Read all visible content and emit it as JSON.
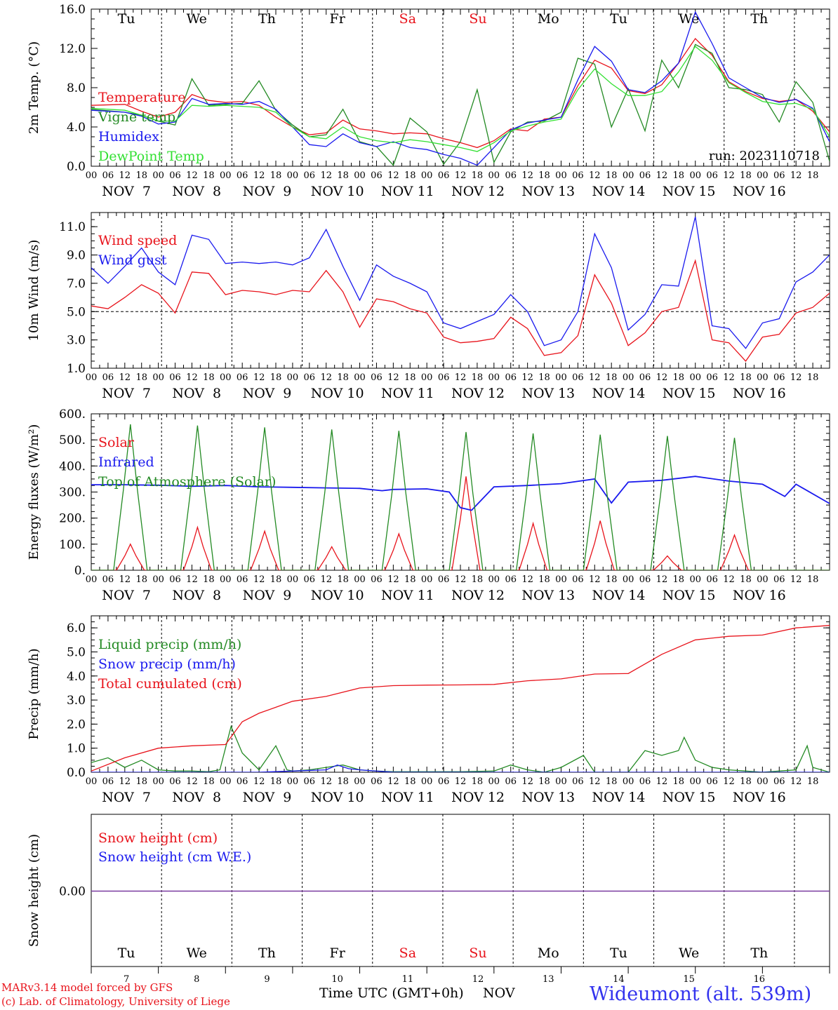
{
  "colors": {
    "red": "#e8131b",
    "green": "#238a23",
    "blue": "#1a1aee",
    "lightgreen": "#33e033",
    "purple": "#7a3aa0",
    "label_blue": "#3333ee"
  },
  "weekdays": [
    {
      "label": "Tu",
      "weekend": false
    },
    {
      "label": "We",
      "weekend": false
    },
    {
      "label": "Th",
      "weekend": false
    },
    {
      "label": "Fr",
      "weekend": false
    },
    {
      "label": "Sa",
      "weekend": true
    },
    {
      "label": "Su",
      "weekend": true
    },
    {
      "label": "Mo",
      "weekend": false
    },
    {
      "label": "Tu",
      "weekend": false
    },
    {
      "label": "We",
      "weekend": false
    },
    {
      "label": "Th",
      "weekend": false
    }
  ],
  "date_labels": [
    "NOV  7",
    "NOV  8",
    "NOV  9",
    "NOV 10",
    "NOV 11",
    "NOV 12",
    "NOV 13",
    "NOV 14",
    "NOV 15",
    "NOV 16"
  ],
  "hour_labels": [
    "00",
    "06",
    "12",
    "18"
  ],
  "bottom_day_numbers": [
    "7",
    "8",
    "9",
    "10",
    "11",
    "12",
    "13",
    "14",
    "15",
    "16"
  ],
  "footer": {
    "model_line": "MARv3.14 model forced by GFS",
    "lab_line": "(c) Lab. of Climatology, University of Liege",
    "time_axis": "Time UTC (GMT+0h)",
    "month": "NOV",
    "station": "Wideumont (alt. 539m)"
  },
  "chart_data": [
    {
      "type": "line",
      "ylabel": "2m Temp. (°C)",
      "ylim": [
        0,
        16
      ],
      "yticks": [
        "0.0",
        "4.0",
        "8.0",
        "12.0",
        "16.0"
      ],
      "annotation": "run: 2023110718",
      "x_unit": "hours since NOV 7 00 UTC",
      "series": [
        {
          "name": "Temperature",
          "color": "red",
          "x": [
            0,
            12,
            18,
            24,
            30,
            36,
            42,
            48,
            54,
            60,
            66,
            72,
            78,
            84,
            90,
            96,
            102,
            108,
            114,
            120,
            126,
            132,
            138,
            144,
            150,
            156,
            162,
            168,
            174,
            180,
            186,
            192,
            198,
            204,
            210,
            216,
            222,
            228,
            234,
            240,
            246,
            252,
            258,
            264
          ],
          "y": [
            6.2,
            6.3,
            5.6,
            5.0,
            5.5,
            7.3,
            6.7,
            6.5,
            6.6,
            6.2,
            5.0,
            4.0,
            3.2,
            3.4,
            4.7,
            3.8,
            3.6,
            3.3,
            3.4,
            3.3,
            2.8,
            2.4,
            1.9,
            2.6,
            3.8,
            3.6,
            4.8,
            5.0,
            8.2,
            10.8,
            10.0,
            7.7,
            7.4,
            8.3,
            10.5,
            13.0,
            11.3,
            8.6,
            7.6,
            6.9,
            6.6,
            6.8,
            5.6,
            3.5
          ]
        },
        {
          "name": "Vigne temp",
          "color": "green",
          "x": [
            0,
            12,
            18,
            24,
            30,
            36,
            42,
            48,
            54,
            60,
            66,
            72,
            78,
            84,
            90,
            96,
            102,
            108,
            114,
            120,
            126,
            132,
            138,
            144,
            150,
            156,
            162,
            168,
            174,
            180,
            186,
            192,
            198,
            204,
            210,
            216,
            222,
            228,
            234,
            240,
            246,
            252,
            258,
            264
          ],
          "y": [
            5.8,
            5.5,
            5.2,
            4.6,
            4.2,
            8.9,
            6.2,
            6.3,
            6.4,
            8.7,
            5.7,
            4.2,
            3.0,
            3.2,
            5.8,
            2.5,
            2.0,
            0.1,
            4.9,
            3.5,
            0.2,
            2.5,
            7.8,
            0.4,
            3.5,
            4.5,
            4.6,
            5.5,
            11.0,
            10.4,
            4.0,
            7.9,
            3.6,
            10.8,
            8.0,
            12.4,
            11.5,
            8.0,
            7.8,
            7.3,
            4.5,
            8.6,
            6.5,
            0.5
          ]
        },
        {
          "name": "Humidex",
          "color": "blue",
          "x": [
            0,
            12,
            18,
            24,
            30,
            36,
            42,
            48,
            54,
            60,
            66,
            72,
            78,
            84,
            90,
            96,
            102,
            108,
            114,
            120,
            126,
            132,
            138,
            144,
            150,
            156,
            162,
            168,
            174,
            180,
            186,
            192,
            198,
            204,
            210,
            216,
            222,
            228,
            234,
            240,
            246,
            252,
            258,
            264
          ],
          "y": [
            5.7,
            5.5,
            5.1,
            4.3,
            4.5,
            6.9,
            6.3,
            6.4,
            6.3,
            6.6,
            5.8,
            4.0,
            2.2,
            2.0,
            3.3,
            2.4,
            2.0,
            2.5,
            1.9,
            1.7,
            1.2,
            0.8,
            0.1,
            1.9,
            3.7,
            4.4,
            4.7,
            5.0,
            8.8,
            12.2,
            10.7,
            7.8,
            7.5,
            8.7,
            10.5,
            15.7,
            12.5,
            9.0,
            8.0,
            7.0,
            6.5,
            6.8,
            5.9,
            2.5
          ]
        },
        {
          "name": "DewPoint Temp",
          "color": "lightgreen",
          "x": [
            0,
            12,
            18,
            24,
            30,
            36,
            42,
            48,
            54,
            60,
            66,
            72,
            78,
            84,
            90,
            96,
            102,
            108,
            114,
            120,
            126,
            132,
            138,
            144,
            150,
            156,
            162,
            168,
            174,
            180,
            186,
            192,
            198,
            204,
            210,
            216,
            222,
            228,
            234,
            240,
            246,
            252,
            258,
            264
          ],
          "y": [
            5.9,
            5.7,
            5.2,
            4.6,
            4.6,
            6.2,
            6.1,
            6.2,
            6.1,
            6.0,
            5.5,
            4.0,
            3.0,
            2.8,
            4.0,
            3.0,
            2.6,
            2.4,
            2.7,
            2.5,
            2.2,
            1.9,
            1.5,
            2.4,
            3.6,
            4.1,
            4.5,
            4.8,
            7.8,
            9.9,
            8.4,
            7.2,
            7.2,
            7.6,
            9.6,
            12.2,
            10.8,
            8.5,
            7.5,
            6.6,
            6.3,
            6.4,
            5.8,
            3.0
          ]
        }
      ]
    },
    {
      "type": "line",
      "ylabel": "10m Wind (m/s)",
      "ylim": [
        1,
        12
      ],
      "yticks": [
        "1.0",
        "3.0",
        "5.0",
        "7.0",
        "9.0",
        "11.0"
      ],
      "reference_line": 5,
      "x_unit": "hours since NOV 7 00 UTC",
      "series": [
        {
          "name": "Wind speed",
          "color": "red",
          "x": [
            0,
            6,
            12,
            18,
            24,
            30,
            36,
            42,
            48,
            54,
            60,
            66,
            72,
            78,
            84,
            90,
            96,
            102,
            108,
            114,
            120,
            126,
            132,
            138,
            144,
            150,
            156,
            162,
            168,
            174,
            180,
            186,
            192,
            198,
            204,
            210,
            216,
            222,
            228,
            234,
            240,
            246,
            252,
            258,
            264
          ],
          "y": [
            5.4,
            5.2,
            6.0,
            6.9,
            6.3,
            4.9,
            7.8,
            7.7,
            6.2,
            6.5,
            6.4,
            6.2,
            6.5,
            6.4,
            7.9,
            6.4,
            3.9,
            5.9,
            5.7,
            5.2,
            4.9,
            3.2,
            2.8,
            2.9,
            3.1,
            4.6,
            3.8,
            1.9,
            2.1,
            3.3,
            7.6,
            5.6,
            2.6,
            3.5,
            5.0,
            5.3,
            8.6,
            3.0,
            2.8,
            1.5,
            3.2,
            3.4,
            4.9,
            5.3,
            6.3
          ]
        },
        {
          "name": "Wind gust",
          "color": "blue",
          "x": [
            0,
            6,
            12,
            18,
            24,
            30,
            36,
            42,
            48,
            54,
            60,
            66,
            72,
            78,
            84,
            90,
            96,
            102,
            108,
            114,
            120,
            126,
            132,
            138,
            144,
            150,
            156,
            162,
            168,
            174,
            180,
            186,
            192,
            198,
            204,
            210,
            216,
            222,
            228,
            234,
            240,
            246,
            252,
            258,
            264
          ],
          "y": [
            8.1,
            7.0,
            8.2,
            9.5,
            7.8,
            6.9,
            10.4,
            10.1,
            8.4,
            8.5,
            8.4,
            8.5,
            8.3,
            8.8,
            10.8,
            8.2,
            5.8,
            8.3,
            7.5,
            7.0,
            6.4,
            4.2,
            3.8,
            4.3,
            4.8,
            6.2,
            5.0,
            2.6,
            3.0,
            5.0,
            10.5,
            8.1,
            3.7,
            4.8,
            6.9,
            6.8,
            11.7,
            4.0,
            3.8,
            2.4,
            4.2,
            4.5,
            7.1,
            7.8,
            9.0
          ]
        }
      ]
    },
    {
      "type": "line",
      "ylabel": "Energy fluxes (W/m²)",
      "ylim": [
        0,
        600
      ],
      "yticks": [
        "0.",
        "100.",
        "200.",
        "300.",
        "400.",
        "500.",
        "600."
      ],
      "x_unit": "hours since NOV 7 00 UTC",
      "series": [
        {
          "name": "Solar",
          "color": "red",
          "peaks": [
            {
              "hour": 14,
              "value": 100
            },
            {
              "hour": 38,
              "value": 165
            },
            {
              "hour": 62,
              "value": 150
            },
            {
              "hour": 86,
              "value": 90
            },
            {
              "hour": 110,
              "value": 140
            },
            {
              "hour": 134,
              "value": 360
            },
            {
              "hour": 158,
              "value": 180
            },
            {
              "hour": 182,
              "value": 190
            },
            {
              "hour": 206,
              "value": 55
            },
            {
              "hour": 230,
              "value": 135
            }
          ]
        },
        {
          "name": "Infrared",
          "color": "blue",
          "x": [
            0,
            12,
            24,
            36,
            48,
            60,
            72,
            84,
            96,
            104,
            108,
            120,
            128,
            132,
            136,
            144,
            156,
            168,
            180,
            186,
            192,
            204,
            216,
            228,
            240,
            248,
            252,
            264
          ],
          "y": [
            328,
            328,
            326,
            322,
            325,
            320,
            318,
            316,
            314,
            305,
            310,
            312,
            300,
            240,
            230,
            320,
            325,
            332,
            350,
            258,
            338,
            345,
            360,
            342,
            330,
            283,
            330,
            256
          ]
        },
        {
          "name": "Top of Atmosphere (Solar)",
          "color": "green",
          "peaks": [
            {
              "hour": 14,
              "value": 560
            },
            {
              "hour": 38,
              "value": 555
            },
            {
              "hour": 62,
              "value": 548
            },
            {
              "hour": 86,
              "value": 540
            },
            {
              "hour": 110,
              "value": 535
            },
            {
              "hour": 134,
              "value": 530
            },
            {
              "hour": 158,
              "value": 525
            },
            {
              "hour": 182,
              "value": 520
            },
            {
              "hour": 206,
              "value": 515
            },
            {
              "hour": 230,
              "value": 508
            }
          ]
        }
      ]
    },
    {
      "type": "line",
      "ylabel": "Precip (mm/h)",
      "ylim": [
        0,
        6.5
      ],
      "yticks": [
        "0.0",
        "1.0",
        "2.0",
        "3.0",
        "4.0",
        "5.0",
        "6.0"
      ],
      "x_unit": "hours since NOV 7 00 UTC",
      "series": [
        {
          "name": "Liquid precip (mm/h)",
          "color": "green",
          "x": [
            0,
            6,
            12,
            18,
            24,
            30,
            36,
            42,
            46,
            50,
            54,
            60,
            66,
            70,
            72,
            78,
            84,
            90,
            96,
            102,
            108,
            120,
            132,
            144,
            150,
            156,
            162,
            168,
            176,
            180,
            192,
            198,
            204,
            210,
            212,
            216,
            222,
            228,
            234,
            240,
            246,
            252,
            256,
            258,
            264
          ],
          "y": [
            0.4,
            0.6,
            0.2,
            0.5,
            0.1,
            0.05,
            0.05,
            0.02,
            0.1,
            1.9,
            0.8,
            0.1,
            1.1,
            0.1,
            0.05,
            0.1,
            0.2,
            0.3,
            0.1,
            0.05,
            0.02,
            0.02,
            0.02,
            0.05,
            0.3,
            0.1,
            0.0,
            0.2,
            0.7,
            0.0,
            0.0,
            0.9,
            0.7,
            0.9,
            1.45,
            0.5,
            0.2,
            0.1,
            0.05,
            0.0,
            0.05,
            0.1,
            1.1,
            0.2,
            0.0
          ]
        },
        {
          "name": "Snow precip (mm/h)",
          "color": "blue",
          "x": [
            0,
            60,
            84,
            88,
            92,
            96,
            108,
            264
          ],
          "y": [
            0,
            0,
            0.1,
            0.3,
            0.15,
            0.1,
            0,
            0
          ]
        },
        {
          "name": "Total cumulated (cm)",
          "color": "red",
          "x": [
            0,
            12,
            24,
            36,
            48,
            54,
            60,
            66,
            72,
            84,
            96,
            108,
            120,
            132,
            144,
            156,
            168,
            180,
            192,
            204,
            216,
            228,
            240,
            252,
            264
          ],
          "y": [
            0.05,
            0.6,
            1.0,
            1.1,
            1.15,
            2.1,
            2.45,
            2.7,
            2.95,
            3.15,
            3.5,
            3.6,
            3.62,
            3.63,
            3.65,
            3.8,
            3.88,
            4.08,
            4.1,
            4.9,
            5.5,
            5.65,
            5.7,
            6.0,
            6.1
          ]
        }
      ]
    },
    {
      "type": "line",
      "ylabel": "Snow height (cm)",
      "yticks": [
        "0.00"
      ],
      "series": [
        {
          "name": "Snow height (cm)",
          "color": "red",
          "x": [
            0,
            264
          ],
          "y": [
            0,
            0
          ]
        },
        {
          "name": "Snow height (cm W.E.)",
          "color": "blue",
          "x": [
            0,
            264
          ],
          "y": [
            0,
            0
          ]
        }
      ]
    }
  ]
}
